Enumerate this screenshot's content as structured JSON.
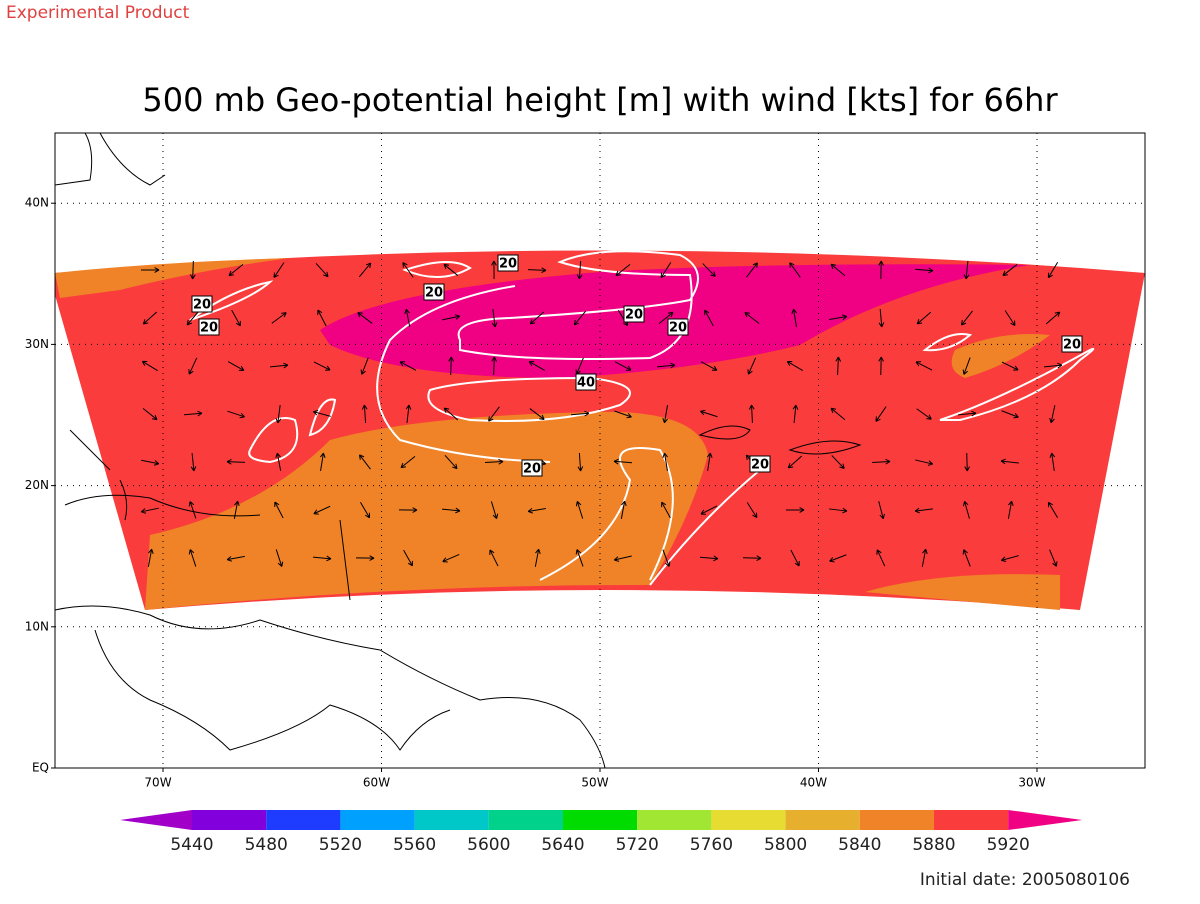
{
  "header": {
    "tag": "Experimental Product",
    "title": "500 mb Geo-potential height [m] with wind [kts] for 66hr",
    "footer": "Initial date: 2005080106"
  },
  "map": {
    "lat_ticks": [
      {
        "value": 40,
        "label": "40N"
      },
      {
        "value": 30,
        "label": "30N"
      },
      {
        "value": 20,
        "label": "20N"
      },
      {
        "value": 10,
        "label": "10N"
      },
      {
        "value": 0,
        "label": "EQ"
      }
    ],
    "lon_ticks": [
      {
        "value": -70,
        "label": "70W"
      },
      {
        "value": -60,
        "label": "60W"
      },
      {
        "value": -50,
        "label": "50W"
      },
      {
        "value": -40,
        "label": "40W"
      },
      {
        "value": -30,
        "label": "30W"
      }
    ],
    "contour_labels": [
      20,
      20,
      20,
      20,
      20,
      20,
      20,
      20,
      20,
      40
    ]
  },
  "colorbar": {
    "levels": [
      5440,
      5480,
      5520,
      5560,
      5600,
      5640,
      5720,
      5760,
      5800,
      5840,
      5880,
      5920
    ],
    "colors": [
      "#a000c8",
      "#8200dc",
      "#1e3cff",
      "#00a0ff",
      "#00c8c8",
      "#00d28c",
      "#00dc00",
      "#a0e632",
      "#e6dc32",
      "#e6af2d",
      "#f08228",
      "#fa3c3c",
      "#f00082"
    ]
  }
}
